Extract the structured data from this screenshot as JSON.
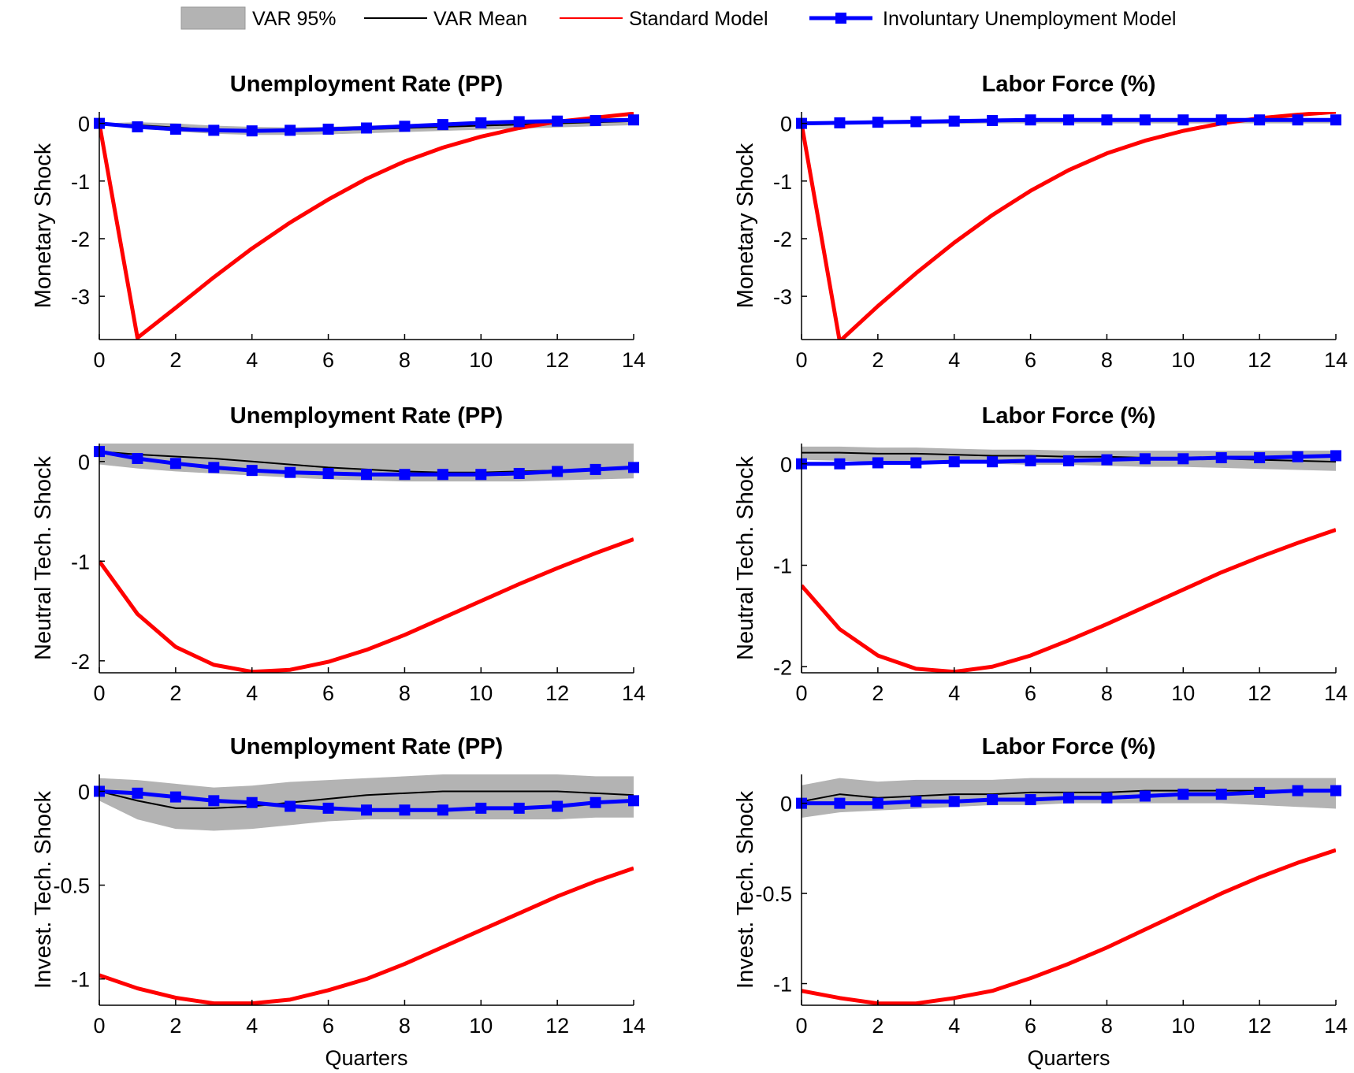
{
  "legend": {
    "items": [
      {
        "label": "VAR 95%",
        "kind": "band",
        "color": "#b3b3b3"
      },
      {
        "label": "VAR Mean",
        "kind": "line",
        "color": "#000000"
      },
      {
        "label": "Standard Model",
        "kind": "line",
        "color": "#ff0000"
      },
      {
        "label": "Involuntary Unemployment Model",
        "kind": "line-marker",
        "color": "#0000ff"
      }
    ]
  },
  "colors": {
    "band": "#b3b3b3",
    "var_mean": "#000000",
    "standard": "#ff0000",
    "involuntary": "#0000ff"
  },
  "chart_data": [
    {
      "type": "line",
      "title": "Unemployment Rate (PP)",
      "ylabel": "Monetary Shock",
      "xlabel": "",
      "xlim": [
        0,
        14
      ],
      "ylim": [
        -3.75,
        0.2
      ],
      "xticks": [
        "0",
        "2",
        "4",
        "6",
        "8",
        "10",
        "12",
        "14"
      ],
      "xtick_values": [
        0,
        2,
        4,
        6,
        8,
        10,
        12,
        14
      ],
      "yticks": [
        "0",
        "-1",
        "-2",
        "-3"
      ],
      "ytick_values": [
        0,
        -1,
        -2,
        -3
      ],
      "x": [
        0,
        1,
        2,
        3,
        4,
        5,
        6,
        7,
        8,
        9,
        10,
        11,
        12,
        13,
        14
      ],
      "series": [
        {
          "name": "VAR 95%",
          "kind": "band",
          "lower": [
            0,
            -0.08,
            -0.14,
            -0.18,
            -0.2,
            -0.2,
            -0.19,
            -0.17,
            -0.15,
            -0.13,
            -0.11,
            -0.09,
            -0.07,
            -0.05,
            -0.03
          ],
          "upper": [
            0,
            0.02,
            0,
            -0.04,
            -0.06,
            -0.07,
            -0.06,
            -0.04,
            -0.02,
            0,
            0.02,
            0.04,
            0.06,
            0.08,
            0.1
          ]
        },
        {
          "name": "VAR Mean",
          "kind": "line",
          "values": [
            0,
            -0.03,
            -0.07,
            -0.11,
            -0.13,
            -0.13,
            -0.12,
            -0.1,
            -0.08,
            -0.06,
            -0.04,
            -0.02,
            0,
            0.02,
            0.04
          ]
        },
        {
          "name": "Standard Model",
          "kind": "line",
          "values": [
            0,
            -3.72,
            -3.2,
            -2.67,
            -2.17,
            -1.72,
            -1.32,
            -0.96,
            -0.66,
            -0.42,
            -0.23,
            -0.08,
            0.03,
            0.1,
            0.17
          ]
        },
        {
          "name": "Involuntary Unemployment Model",
          "kind": "line-marker",
          "values": [
            0,
            -0.06,
            -0.1,
            -0.12,
            -0.13,
            -0.12,
            -0.1,
            -0.08,
            -0.05,
            -0.02,
            0.01,
            0.03,
            0.04,
            0.05,
            0.06
          ]
        }
      ]
    },
    {
      "type": "line",
      "title": "Labor Force (%)",
      "ylabel": "Monetary Shock",
      "xlabel": "",
      "xlim": [
        0,
        14
      ],
      "ylim": [
        -3.75,
        0.2
      ],
      "xticks": [
        "0",
        "2",
        "4",
        "6",
        "8",
        "10",
        "12",
        "14"
      ],
      "xtick_values": [
        0,
        2,
        4,
        6,
        8,
        10,
        12,
        14
      ],
      "yticks": [
        "0",
        "-1",
        "-2",
        "-3"
      ],
      "ytick_values": [
        0,
        -1,
        -2,
        -3
      ],
      "x": [
        0,
        1,
        2,
        3,
        4,
        5,
        6,
        7,
        8,
        9,
        10,
        11,
        12,
        13,
        14
      ],
      "series": [
        {
          "name": "VAR 95%",
          "kind": "band",
          "lower": [
            0,
            -0.01,
            -0.01,
            -0.01,
            -0.01,
            0,
            0,
            0,
            0,
            0,
            0,
            0,
            0,
            0,
            0
          ],
          "upper": [
            0,
            0.02,
            0.04,
            0.05,
            0.06,
            0.07,
            0.08,
            0.08,
            0.09,
            0.09,
            0.09,
            0.09,
            0.09,
            0.09,
            0.09
          ]
        },
        {
          "name": "VAR Mean",
          "kind": "line",
          "values": [
            0,
            0.01,
            0.02,
            0.03,
            0.03,
            0.04,
            0.04,
            0.05,
            0.05,
            0.05,
            0.05,
            0.05,
            0.05,
            0.05,
            0.05
          ]
        },
        {
          "name": "Standard Model",
          "kind": "line",
          "values": [
            0,
            -3.78,
            -3.17,
            -2.6,
            -2.07,
            -1.59,
            -1.17,
            -0.81,
            -0.52,
            -0.3,
            -0.13,
            0,
            0.09,
            0.15,
            0.2
          ]
        },
        {
          "name": "Involuntary Unemployment Model",
          "kind": "line-marker",
          "values": [
            0,
            0.01,
            0.02,
            0.03,
            0.04,
            0.05,
            0.06,
            0.06,
            0.06,
            0.06,
            0.06,
            0.06,
            0.06,
            0.06,
            0.06
          ]
        }
      ]
    },
    {
      "type": "line",
      "title": "Unemployment Rate (PP)",
      "ylabel": "Neutral Tech. Shock",
      "xlabel": "",
      "xlim": [
        0,
        14
      ],
      "ylim": [
        -2.12,
        0.18
      ],
      "xticks": [
        "0",
        "2",
        "4",
        "6",
        "8",
        "10",
        "12",
        "14"
      ],
      "xtick_values": [
        0,
        2,
        4,
        6,
        8,
        10,
        12,
        14
      ],
      "yticks": [
        "0",
        "-1",
        "-2"
      ],
      "ytick_values": [
        0,
        -1,
        -2
      ],
      "x": [
        0,
        1,
        2,
        3,
        4,
        5,
        6,
        7,
        8,
        9,
        10,
        11,
        12,
        13,
        14
      ],
      "series": [
        {
          "name": "VAR 95%",
          "kind": "band",
          "lower": [
            -0.03,
            -0.07,
            -0.1,
            -0.12,
            -0.14,
            -0.16,
            -0.18,
            -0.19,
            -0.2,
            -0.2,
            -0.2,
            -0.2,
            -0.19,
            -0.18,
            -0.17
          ]
        },
        {
          "name": "VAR Mean",
          "kind": "line",
          "values": [
            0.1,
            0.07,
            0.05,
            0.03,
            0,
            -0.03,
            -0.06,
            -0.08,
            -0.1,
            -0.11,
            -0.11,
            -0.1,
            -0.09,
            -0.08,
            -0.06
          ]
        },
        {
          "name": "Standard Model",
          "kind": "line",
          "values": [
            -1,
            -1.53,
            -1.86,
            -2.04,
            -2.11,
            -2.09,
            -2.01,
            -1.89,
            -1.74,
            -1.57,
            -1.4,
            -1.23,
            -1.07,
            -0.92,
            -0.78
          ]
        },
        {
          "name": "Involuntary Unemployment Model",
          "kind": "line-marker",
          "values": [
            0.1,
            0.03,
            -0.02,
            -0.06,
            -0.09,
            -0.11,
            -0.12,
            -0.13,
            -0.13,
            -0.13,
            -0.13,
            -0.12,
            -0.1,
            -0.08,
            -0.06
          ]
        }
      ]
    },
    {
      "type": "line",
      "title": "Labor Force (%)",
      "ylabel": "Neutral Tech. Shock",
      "xlabel": "",
      "xlim": [
        0,
        14
      ],
      "ylim": [
        -2.06,
        0.2
      ],
      "xticks": [
        "0",
        "2",
        "4",
        "6",
        "8",
        "10",
        "12",
        "14"
      ],
      "xtick_values": [
        0,
        2,
        4,
        6,
        8,
        10,
        12,
        14
      ],
      "yticks": [
        "0",
        "-1",
        "-2"
      ],
      "ytick_values": [
        0,
        -1,
        -2
      ],
      "x": [
        0,
        1,
        2,
        3,
        4,
        5,
        6,
        7,
        8,
        9,
        10,
        11,
        12,
        13,
        14
      ],
      "series": [
        {
          "name": "VAR 95%",
          "kind": "band",
          "lower": [
            0.04,
            0.03,
            0.02,
            0.02,
            0.01,
            0,
            -0.01,
            -0.01,
            -0.02,
            -0.03,
            -0.03,
            -0.04,
            -0.05,
            -0.06,
            -0.07
          ],
          "upper": [
            0.17,
            0.17,
            0.16,
            0.16,
            0.15,
            0.14,
            0.14,
            0.13,
            0.13,
            0.13,
            0.13,
            0.13,
            0.13,
            0.13,
            0.13
          ]
        },
        {
          "name": "VAR Mean",
          "kind": "line",
          "values": [
            0.11,
            0.11,
            0.1,
            0.1,
            0.09,
            0.08,
            0.08,
            0.07,
            0.07,
            0.06,
            0.06,
            0.05,
            0.04,
            0.03,
            0.02
          ]
        },
        {
          "name": "Standard Model",
          "kind": "line",
          "values": [
            -1.2,
            -1.63,
            -1.89,
            -2.02,
            -2.05,
            -2.0,
            -1.89,
            -1.74,
            -1.58,
            -1.41,
            -1.24,
            -1.07,
            -0.92,
            -0.78,
            -0.65
          ]
        },
        {
          "name": "Involuntary Unemployment Model",
          "kind": "line-marker",
          "values": [
            0,
            0,
            0.01,
            0.01,
            0.02,
            0.02,
            0.03,
            0.03,
            0.04,
            0.05,
            0.05,
            0.06,
            0.06,
            0.07,
            0.08
          ]
        }
      ]
    },
    {
      "type": "line",
      "title": "Unemployment Rate (PP)",
      "ylabel": "Invest. Tech. Shock",
      "xlabel": "Quarters",
      "xlim": [
        0,
        14
      ],
      "ylim": [
        -1.14,
        0.09
      ],
      "xticks": [
        "0",
        "2",
        "4",
        "6",
        "8",
        "10",
        "12",
        "14"
      ],
      "xtick_values": [
        0,
        2,
        4,
        6,
        8,
        10,
        12,
        14
      ],
      "yticks": [
        "0",
        "-0.5",
        "-1"
      ],
      "ytick_values": [
        0,
        -0.5,
        -1
      ],
      "x": [
        0,
        1,
        2,
        3,
        4,
        5,
        6,
        7,
        8,
        9,
        10,
        11,
        12,
        13,
        14
      ],
      "series": [
        {
          "name": "VAR 95%",
          "kind": "band",
          "lower": [
            -0.05,
            -0.15,
            -0.2,
            -0.21,
            -0.2,
            -0.18,
            -0.16,
            -0.15,
            -0.15,
            -0.15,
            -0.15,
            -0.15,
            -0.15,
            -0.14,
            -0.14
          ],
          "upper": [
            0.07,
            0.06,
            0.04,
            0.02,
            0.03,
            0.05,
            0.06,
            0.07,
            0.08,
            0.09,
            0.09,
            0.09,
            0.09,
            0.08,
            0.08
          ]
        },
        {
          "name": "VAR Mean",
          "kind": "line",
          "values": [
            0,
            -0.05,
            -0.09,
            -0.09,
            -0.08,
            -0.06,
            -0.04,
            -0.02,
            -0.01,
            0,
            0,
            0,
            0,
            -0.01,
            -0.02
          ]
        },
        {
          "name": "Standard Model",
          "kind": "line",
          "values": [
            -0.98,
            -1.05,
            -1.1,
            -1.13,
            -1.13,
            -1.11,
            -1.06,
            -1.0,
            -0.92,
            -0.83,
            -0.74,
            -0.65,
            -0.56,
            -0.48,
            -0.41
          ]
        },
        {
          "name": "Involuntary Unemployment Model",
          "kind": "line-marker",
          "values": [
            0,
            -0.01,
            -0.03,
            -0.05,
            -0.06,
            -0.08,
            -0.09,
            -0.1,
            -0.1,
            -0.1,
            -0.09,
            -0.09,
            -0.08,
            -0.06,
            -0.05
          ]
        }
      ]
    },
    {
      "type": "line",
      "title": "Labor Force (%)",
      "ylabel": "Invest. Tech. Shock",
      "xlabel": "Quarters",
      "xlim": [
        0,
        14
      ],
      "ylim": [
        -1.12,
        0.16
      ],
      "xticks": [
        "0",
        "2",
        "4",
        "6",
        "8",
        "10",
        "12",
        "14"
      ],
      "xtick_values": [
        0,
        2,
        4,
        6,
        8,
        10,
        12,
        14
      ],
      "yticks": [
        "0",
        "-0.5",
        "-1"
      ],
      "ytick_values": [
        0,
        -0.5,
        -1
      ],
      "x": [
        0,
        1,
        2,
        3,
        4,
        5,
        6,
        7,
        8,
        9,
        10,
        11,
        12,
        13,
        14
      ],
      "series": [
        {
          "name": "VAR 95%",
          "kind": "band",
          "lower": [
            -0.08,
            -0.05,
            -0.04,
            -0.03,
            -0.02,
            -0.01,
            -0.01,
            0,
            0,
            0,
            0,
            0,
            -0.01,
            -0.02,
            -0.03
          ],
          "upper": [
            0.1,
            0.14,
            0.12,
            0.13,
            0.13,
            0.13,
            0.14,
            0.14,
            0.14,
            0.14,
            0.14,
            0.14,
            0.14,
            0.14,
            0.14
          ]
        },
        {
          "name": "VAR Mean",
          "kind": "line",
          "values": [
            0.01,
            0.05,
            0.03,
            0.04,
            0.05,
            0.05,
            0.06,
            0.06,
            0.06,
            0.07,
            0.07,
            0.07,
            0.07,
            0.07,
            0.07
          ]
        },
        {
          "name": "Standard Model",
          "kind": "line",
          "values": [
            -1.04,
            -1.08,
            -1.11,
            -1.11,
            -1.08,
            -1.04,
            -0.97,
            -0.89,
            -0.8,
            -0.7,
            -0.6,
            -0.5,
            -0.41,
            -0.33,
            -0.26
          ]
        },
        {
          "name": "Involuntary Unemployment Model",
          "kind": "line-marker",
          "values": [
            0,
            0,
            0,
            0.01,
            0.01,
            0.02,
            0.02,
            0.03,
            0.03,
            0.04,
            0.05,
            0.05,
            0.06,
            0.07,
            0.07
          ]
        }
      ]
    }
  ]
}
